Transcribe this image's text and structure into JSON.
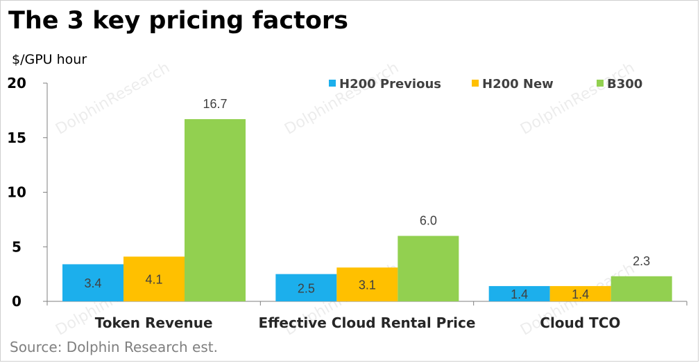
{
  "title": "The 3 key pricing factors",
  "source": "Source: Dolphin Research est.",
  "watermark_text": "DolphinResearch",
  "colors": {
    "h200_previous": "#1CAFEC",
    "h200_new": "#FFC000",
    "b300": "#92D050",
    "axis": "#7f7f7f"
  },
  "chart_data": {
    "type": "bar",
    "title": "The 3 key pricing factors",
    "ylabel": "$/GPU hour",
    "xlabel": "",
    "ylim": [
      0,
      20
    ],
    "yticks": [
      "0",
      "5",
      "10",
      "15",
      "20"
    ],
    "grid": false,
    "legend_position": "top-right",
    "categories": [
      "Token Revenue",
      "Effective Cloud Rental Price",
      "Cloud TCO"
    ],
    "series": [
      {
        "name": "H200 Previous",
        "color": "#1CAFEC",
        "values": [
          3.4,
          2.5,
          1.4
        ],
        "labels": [
          "3.4",
          "2.5",
          "1.4"
        ]
      },
      {
        "name": "H200 New",
        "color": "#FFC000",
        "values": [
          4.1,
          3.1,
          1.4
        ],
        "labels": [
          "4.1",
          "3.1",
          "1.4"
        ]
      },
      {
        "name": "B300",
        "color": "#92D050",
        "values": [
          16.7,
          6.0,
          2.3
        ],
        "labels": [
          "16.7",
          "6.0",
          "2.3"
        ]
      }
    ]
  }
}
